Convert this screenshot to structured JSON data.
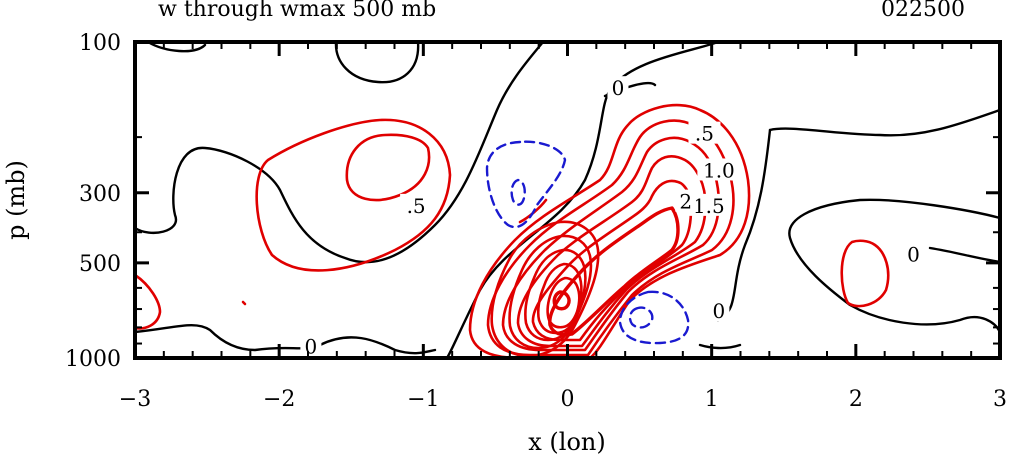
{
  "chart_data": {
    "type": "contour",
    "title": "w through wmax 500 mb",
    "time_label": "022500",
    "xlabel": "x (lon)",
    "ylabel": "p (mb)",
    "xlim": [
      -3,
      3
    ],
    "ylim": [
      1000,
      100
    ],
    "y_scale": "log",
    "x_ticks": [
      -3,
      -2,
      -1,
      0,
      1,
      2,
      3
    ],
    "x_tick_labels": [
      "−3",
      "−2",
      "−1",
      "0",
      "1",
      "2",
      "3"
    ],
    "y_ticks": [
      100,
      300,
      500,
      1000
    ],
    "y_tick_labels": [
      "100",
      "300",
      "500",
      "1000"
    ],
    "contour_labels": [
      {
        "text": "0",
        "x": 0.35,
        "p": 140,
        "color": "#000000"
      },
      {
        "text": ".5",
        "x": 0.95,
        "p": 195,
        "color": "#000000"
      },
      {
        "text": "1.0",
        "x": 1.05,
        "p": 255,
        "color": "#000000"
      },
      {
        "text": "1.5",
        "x": 0.98,
        "p": 330,
        "color": "#000000"
      },
      {
        "text": "2",
        "x": 0.82,
        "p": 320,
        "color": "#000000"
      },
      {
        "text": ".5",
        "x": -1.05,
        "p": 330,
        "color": "#000000"
      },
      {
        "text": "0",
        "x": 2.4,
        "p": 470,
        "color": "#000000"
      },
      {
        "text": "0",
        "x": 1.05,
        "p": 710,
        "color": "#000000"
      },
      {
        "text": "0",
        "x": -1.78,
        "p": 920,
        "color": "#000000"
      }
    ],
    "colors": {
      "positive": "#e00000",
      "negative": "#1a1ad0",
      "zero": "#000000"
    }
  }
}
